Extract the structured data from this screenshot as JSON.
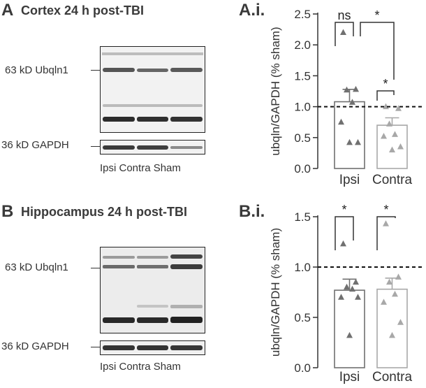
{
  "panel_A": {
    "letter": "A",
    "title": "Cortex 24 h post-TBI",
    "band_ubqln1_label": "63 kD Ubqln1",
    "band_gapdh_label": "36 kD GAPDH",
    "lanes": "Ipsi Contra Sham"
  },
  "panel_B": {
    "letter": "B",
    "title": "Hippocampus 24 h post-TBI",
    "band_ubqln1_label": "63 kD Ubqln1",
    "band_gapdh_label": "36 kD GAPDH",
    "lanes": "Ipsi Contra Sham"
  },
  "chart_data": [
    {
      "type": "bar",
      "panel_label": "A.i.",
      "ylabel": "ubqln/GAPDH (% sham)",
      "xlabel": "",
      "categories": [
        "Ipsi",
        "Contra"
      ],
      "means": [
        1.08,
        0.7
      ],
      "sem": [
        0.2,
        0.12
      ],
      "ylim": [
        0,
        2.5
      ],
      "yticks": [
        0,
        0.5,
        1.0,
        1.5,
        2.0,
        2.5
      ],
      "ytick_labels": [
        "0.0",
        "0.5",
        "1.0",
        "1.5",
        "2.0",
        "2.5"
      ],
      "points": [
        [
          2.2,
          1.28,
          1.27,
          1.07,
          0.75,
          0.42,
          0.42
        ],
        [
          1.0,
          0.97,
          0.72,
          0.55,
          0.52,
          0.35,
          0.3
        ]
      ],
      "bar_colors": [
        "#707070",
        "#a8a8a8"
      ],
      "reference_line": 1.0,
      "significance": [
        {
          "from": 0,
          "to": 0,
          "label": "ns"
        },
        {
          "from": 0,
          "to": 1,
          "label": "*"
        },
        {
          "from": 1,
          "to": 1,
          "label": "*"
        }
      ]
    },
    {
      "type": "bar",
      "panel_label": "B.i.",
      "ylabel": "ubqln/GAPDH (% sham)",
      "xlabel": "",
      "categories": [
        "Ipsi",
        "Contra"
      ],
      "means": [
        0.77,
        0.78
      ],
      "sem": [
        0.11,
        0.11
      ],
      "ylim": [
        0,
        1.5
      ],
      "yticks": [
        0,
        0.5,
        1.0,
        1.5
      ],
      "ytick_labels": [
        "0.0",
        "0.5",
        "1.0",
        "1.5"
      ],
      "points": [
        [
          1.23,
          0.85,
          0.8,
          0.78,
          0.7,
          0.7,
          0.32
        ],
        [
          1.43,
          0.9,
          0.85,
          0.73,
          0.65,
          0.45,
          0.32
        ]
      ],
      "bar_colors": [
        "#707070",
        "#a8a8a8"
      ],
      "reference_line": 1.0,
      "significance": [
        {
          "from": 0,
          "to": 0,
          "label": "*"
        },
        {
          "from": 1,
          "to": 1,
          "label": "*"
        }
      ]
    }
  ]
}
